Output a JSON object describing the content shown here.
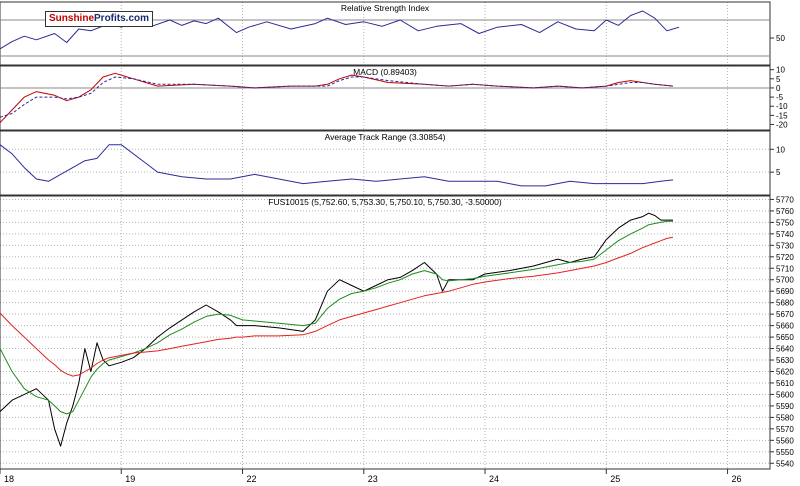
{
  "logo": {
    "part1": "Sunshine",
    "part2": "Profits.com"
  },
  "colors": {
    "price": "#000000",
    "ma_fast": "#1e8c1e",
    "ma_slow": "#e32222",
    "rsi": "#2b2b99",
    "macd": "#c00000",
    "macd_signal": "#2b2b99",
    "atr": "#2b2b99",
    "grid": "#b3b3b3",
    "frame": "#333333"
  },
  "x_axis": {
    "ticks": [
      {
        "label": "18",
        "pos": 0.0
      },
      {
        "label": "19",
        "pos": 1.0
      },
      {
        "label": "22",
        "pos": 2.0
      },
      {
        "label": "23",
        "pos": 3.0
      },
      {
        "label": "24",
        "pos": 4.0
      },
      {
        "label": "25",
        "pos": 5.0
      },
      {
        "label": "26",
        "pos": 6.0
      }
    ],
    "range": [
      0.0,
      6.35
    ]
  },
  "chart_data": [
    {
      "type": "line",
      "title": "Relative Strength Index",
      "ylim": [
        20,
        90
      ],
      "y_ticks": [
        50
      ],
      "levels": [
        30,
        70
      ],
      "x": [
        0.0,
        0.1,
        0.2,
        0.3,
        0.45,
        0.55,
        0.65,
        0.75,
        0.9,
        1.0,
        1.1,
        1.25,
        1.4,
        1.5,
        1.6,
        1.7,
        1.8,
        1.95,
        2.05,
        2.2,
        2.4,
        2.6,
        2.7,
        2.85,
        3.0,
        3.15,
        3.3,
        3.45,
        3.6,
        3.8,
        3.95,
        4.1,
        4.3,
        4.45,
        4.6,
        4.75,
        4.9,
        5.0,
        5.1,
        5.2,
        5.3,
        5.4,
        5.5,
        5.55,
        5.6
      ],
      "series": [
        {
          "values": [
            38,
            46,
            52,
            48,
            55,
            45,
            60,
            58,
            66,
            62,
            67,
            63,
            70,
            64,
            69,
            66,
            72,
            56,
            62,
            68,
            60,
            66,
            72,
            65,
            68,
            63,
            70,
            58,
            63,
            66,
            55,
            62,
            65,
            56,
            68,
            60,
            58,
            70,
            64,
            75,
            80,
            72,
            58,
            60,
            62
          ]
        }
      ]
    },
    {
      "type": "line",
      "title": "MACD (0.89403)",
      "ylim": [
        -23,
        12
      ],
      "y_ticks": [
        10,
        5,
        0,
        -5,
        -10,
        -15,
        -20
      ],
      "x": [
        0.0,
        0.1,
        0.2,
        0.3,
        0.45,
        0.55,
        0.65,
        0.75,
        0.85,
        0.95,
        1.1,
        1.3,
        1.6,
        1.9,
        2.1,
        2.4,
        2.6,
        2.7,
        2.8,
        2.9,
        3.0,
        3.2,
        3.5,
        3.7,
        3.9,
        4.1,
        4.4,
        4.6,
        4.8,
        5.0,
        5.1,
        5.2,
        5.3,
        5.4,
        5.55
      ],
      "series": [
        {
          "name": "MACD",
          "values": [
            -19,
            -12,
            -5,
            -2,
            -4,
            -7,
            -5,
            -1,
            6,
            8,
            5,
            1,
            2,
            1,
            0,
            1,
            1,
            2,
            5,
            7,
            6,
            3,
            2,
            1,
            2,
            1,
            0,
            1,
            0,
            1,
            3,
            4,
            3,
            2,
            1
          ]
        },
        {
          "name": "Signal",
          "values": [
            -16,
            -14,
            -9,
            -5,
            -5,
            -6,
            -5,
            -3,
            3,
            6,
            5,
            2,
            2,
            1,
            0,
            1,
            1,
            1,
            4,
            6,
            6,
            4,
            2,
            1,
            2,
            1,
            0,
            1,
            0,
            1,
            2,
            3,
            3,
            2,
            1
          ]
        }
      ]
    },
    {
      "type": "line",
      "title": "Average Track Range (3.30854)",
      "ylim": [
        0,
        14
      ],
      "y_ticks": [
        10,
        5
      ],
      "x": [
        0.0,
        0.1,
        0.2,
        0.3,
        0.4,
        0.5,
        0.6,
        0.7,
        0.8,
        0.9,
        1.0,
        1.15,
        1.3,
        1.5,
        1.7,
        1.9,
        2.1,
        2.3,
        2.5,
        2.7,
        2.9,
        3.1,
        3.3,
        3.5,
        3.7,
        3.9,
        4.1,
        4.3,
        4.5,
        4.7,
        4.9,
        5.1,
        5.3,
        5.45,
        5.55
      ],
      "series": [
        {
          "values": [
            11,
            9,
            6,
            3.5,
            3,
            4.5,
            6,
            7.5,
            8,
            11,
            11,
            8,
            5,
            4,
            3.5,
            3.5,
            4.5,
            3.5,
            2.5,
            3,
            3.5,
            3,
            3.5,
            4,
            3,
            3,
            3,
            2,
            2,
            3,
            2.5,
            2.5,
            2.5,
            3,
            3.3
          ]
        }
      ]
    },
    {
      "type": "line",
      "title": "FUS10015 (5,752.60, 5,753.30, 5,750.10, 5,750.30, -3.50000)",
      "ylim": [
        5535,
        5773
      ],
      "y_ticks": [
        5770,
        5760,
        5750,
        5740,
        5730,
        5720,
        5710,
        5700,
        5690,
        5680,
        5670,
        5660,
        5650,
        5640,
        5630,
        5620,
        5610,
        5600,
        5590,
        5580,
        5570,
        5560,
        5550,
        5540
      ],
      "x": [
        0.0,
        0.1,
        0.2,
        0.3,
        0.4,
        0.45,
        0.5,
        0.55,
        0.6,
        0.65,
        0.7,
        0.75,
        0.8,
        0.85,
        0.9,
        1.0,
        1.1,
        1.2,
        1.3,
        1.4,
        1.5,
        1.6,
        1.7,
        1.8,
        1.9,
        1.95,
        2.0,
        2.1,
        2.3,
        2.5,
        2.6,
        2.7,
        2.8,
        2.9,
        3.0,
        3.1,
        3.2,
        3.3,
        3.4,
        3.5,
        3.6,
        3.65,
        3.7,
        3.8,
        3.9,
        4.0,
        4.2,
        4.4,
        4.6,
        4.7,
        4.8,
        4.9,
        5.0,
        5.1,
        5.2,
        5.3,
        5.35,
        5.4,
        5.45,
        5.5,
        5.55
      ],
      "series": [
        {
          "name": "Price",
          "values": [
            5585,
            5595,
            5600,
            5605,
            5595,
            5570,
            5555,
            5575,
            5590,
            5610,
            5640,
            5620,
            5645,
            5630,
            5625,
            5628,
            5632,
            5640,
            5650,
            5658,
            5665,
            5672,
            5678,
            5672,
            5665,
            5660,
            5660,
            5660,
            5658,
            5655,
            5665,
            5690,
            5700,
            5695,
            5690,
            5695,
            5700,
            5702,
            5708,
            5715,
            5705,
            5690,
            5700,
            5700,
            5700,
            5705,
            5708,
            5712,
            5718,
            5715,
            5718,
            5720,
            5735,
            5745,
            5752,
            5755,
            5758,
            5756,
            5752,
            5752,
            5752
          ]
        },
        {
          "name": "Fast MA",
          "values": [
            5640,
            5620,
            5605,
            5598,
            5595,
            5590,
            5585,
            5583,
            5585,
            5595,
            5605,
            5615,
            5622,
            5627,
            5630,
            5633,
            5636,
            5640,
            5645,
            5652,
            5657,
            5663,
            5668,
            5670,
            5669,
            5667,
            5665,
            5664,
            5662,
            5660,
            5662,
            5675,
            5683,
            5688,
            5690,
            5693,
            5697,
            5700,
            5705,
            5708,
            5705,
            5700,
            5699,
            5700,
            5701,
            5703,
            5706,
            5709,
            5713,
            5715,
            5716,
            5718,
            5726,
            5734,
            5740,
            5745,
            5748,
            5749,
            5750,
            5751,
            5751
          ]
        },
        {
          "name": "Slow MA",
          "values": [
            5671,
            5660,
            5650,
            5640,
            5630,
            5626,
            5621,
            5618,
            5616,
            5617,
            5620,
            5623,
            5627,
            5630,
            5632,
            5634,
            5636,
            5637,
            5638,
            5640,
            5642,
            5644,
            5646,
            5648,
            5649,
            5650,
            5650,
            5651,
            5651,
            5652,
            5655,
            5660,
            5665,
            5668,
            5671,
            5674,
            5677,
            5680,
            5683,
            5686,
            5688,
            5689,
            5690,
            5693,
            5696,
            5698,
            5701,
            5703,
            5706,
            5708,
            5710,
            5712,
            5715,
            5719,
            5723,
            5728,
            5730,
            5732,
            5734,
            5736,
            5737
          ]
        }
      ]
    }
  ]
}
